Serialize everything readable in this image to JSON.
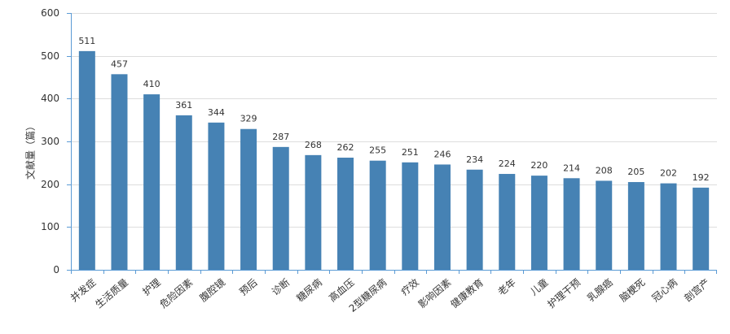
{
  "chart_data": {
    "type": "bar",
    "categories": [
      "并发症",
      "生活质量",
      "护理",
      "危险因素",
      "腹腔镜",
      "预后",
      "诊断",
      "糖尿病",
      "高血压",
      "2型糖尿病",
      "疗效",
      "影响因素",
      "健康教育",
      "老年",
      "儿童",
      "护理干预",
      "乳腺癌",
      "脑梗死",
      "冠心病",
      "剖宫产"
    ],
    "values": [
      511,
      457,
      410,
      361,
      344,
      329,
      287,
      268,
      262,
      255,
      251,
      246,
      234,
      224,
      220,
      214,
      208,
      205,
      202,
      192
    ],
    "title": "",
    "xlabel": "",
    "ylabel": "文献量（篇）",
    "ylim": [
      0,
      600
    ],
    "yticks": [
      0,
      100,
      200,
      300,
      400,
      500,
      600
    ],
    "grid": true,
    "bar_color": "#4682b4",
    "grid_color": "#dddddd",
    "axis_color": "#5b9bd5"
  }
}
